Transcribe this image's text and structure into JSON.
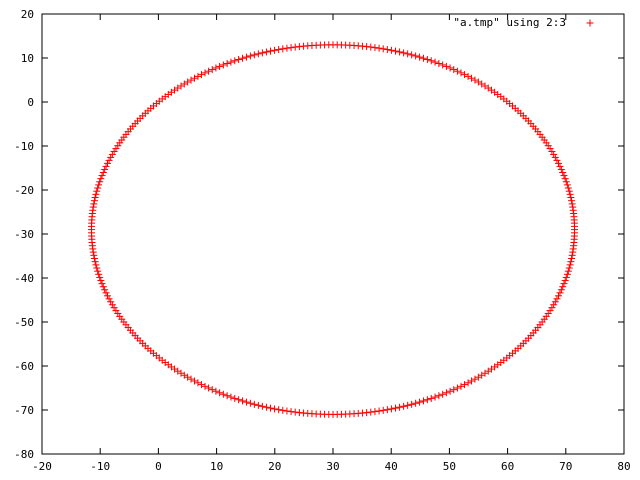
{
  "chart_data": {
    "type": "scatter",
    "title": "",
    "xlabel": "",
    "ylabel": "",
    "xlim": [
      -20,
      80
    ],
    "ylim": [
      -80,
      20
    ],
    "xticks": [
      -20,
      -10,
      0,
      10,
      20,
      30,
      40,
      50,
      60,
      70,
      80
    ],
    "yticks": [
      -80,
      -70,
      -60,
      -50,
      -40,
      -30,
      -20,
      -10,
      0,
      10,
      20
    ],
    "grid": false,
    "legend_position": "top-right",
    "series": [
      {
        "name": "\"a.tmp\" using 2:3",
        "marker": "plus",
        "color": "#ff0000",
        "shape": "ellipse",
        "center": [
          30,
          -29
        ],
        "x_radius": 41.5,
        "y_radius": 42,
        "x_range": [
          -11.5,
          71.5
        ],
        "y_range": [
          -71,
          13
        ],
        "point_count": 360
      }
    ]
  }
}
